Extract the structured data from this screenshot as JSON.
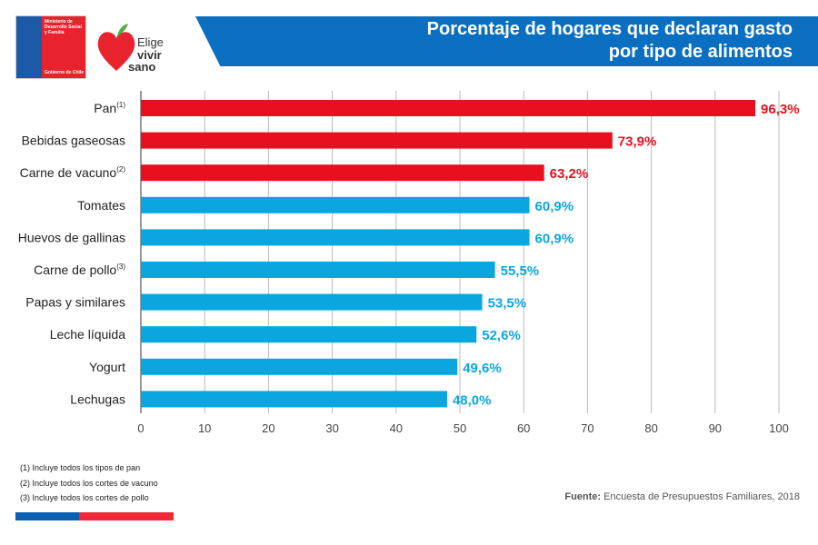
{
  "header": {
    "title_line1": "Porcentaje de hogares que declaran gasto",
    "title_line2": "por tipo de alimentos"
  },
  "logos": {
    "ministry": "Ministerio de Desarrollo Social y Familia",
    "ministry_sub": "Gobierno de Chile",
    "brand_line1": "Elige",
    "brand_line2": "vivir",
    "brand_line3": "sano"
  },
  "chart_data": {
    "type": "bar",
    "orientation": "horizontal",
    "categories": [
      "Pan(1)",
      "Bebidas gaseosas",
      "Carne de vacuno(2)",
      "Tomates",
      "Huevos de gallinas",
      "Carne de pollo(3)",
      "Papas y similares",
      "Leche líquida",
      "Yogurt",
      "Lechugas"
    ],
    "category_labels": [
      "Pan",
      "Bebidas gaseosas",
      "Carne de vacuno",
      "Tomates",
      "Huevos de gallinas",
      "Carne de pollo",
      "Papas y similares",
      "Leche líquida",
      "Yogurt",
      "Lechugas"
    ],
    "category_superscripts": [
      "(1)",
      "",
      "(2)",
      "",
      "",
      "(3)",
      "",
      "",
      "",
      ""
    ],
    "values": [
      96.3,
      73.9,
      63.2,
      60.9,
      60.9,
      55.5,
      53.5,
      52.6,
      49.6,
      48.0
    ],
    "value_labels": [
      "96,3%",
      "73,9%",
      "63,2%",
      "60,9%",
      "60,9%",
      "55,5%",
      "53,5%",
      "52,6%",
      "49,6%",
      "48,0%"
    ],
    "bar_colors": [
      "#e8101e",
      "#e8101e",
      "#e8101e",
      "#0aa6e0",
      "#0aa6e0",
      "#0aa6e0",
      "#0aa6e0",
      "#0aa6e0",
      "#0aa6e0",
      "#0aa6e0"
    ],
    "xlim": [
      0,
      100
    ],
    "xticks": [
      "0",
      "10",
      "20",
      "30",
      "40",
      "50",
      "60",
      "70",
      "80",
      "90",
      "100"
    ],
    "grid": "vertical"
  },
  "footnotes": [
    "(1) Incluye todos los tipos de pan",
    "(2) Incluye todos los cortes de vacuno",
    "(3) Incluye todos los cortes de pollo"
  ],
  "source": {
    "label": "Fuente:",
    "text": " Encuesta de Presupuestos Familiares, 2018"
  },
  "colors": {
    "blue": "#0a6fc0",
    "red": "#e8101e",
    "cyan": "#0aa6e0"
  }
}
